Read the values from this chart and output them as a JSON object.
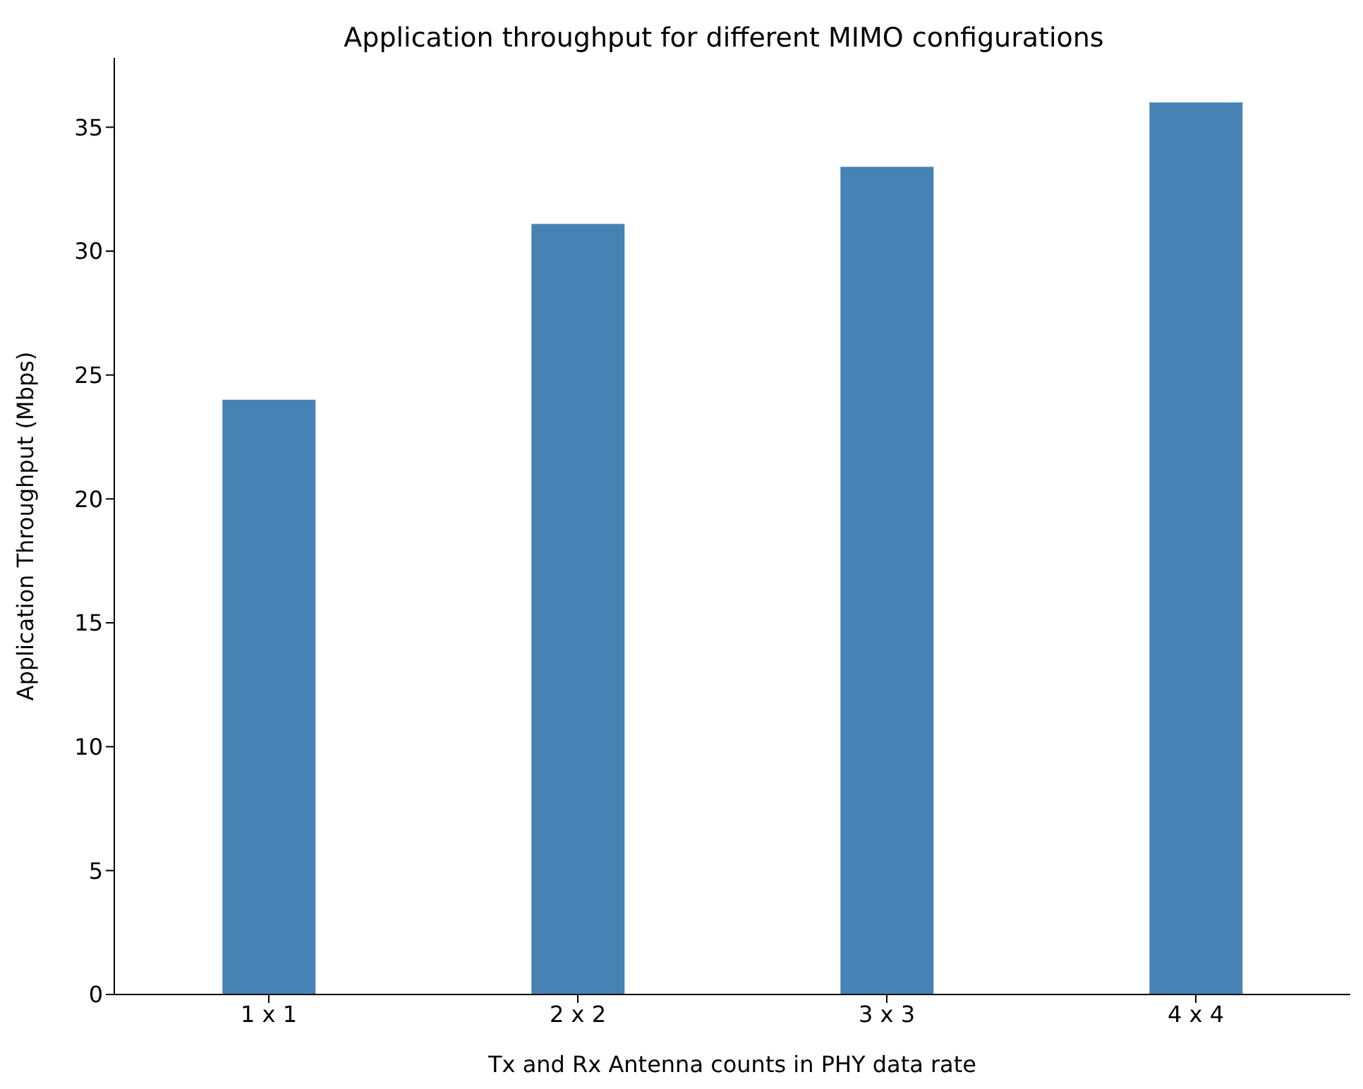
{
  "chart_data": {
    "type": "bar",
    "title": "Application throughput for different MIMO configurations",
    "xlabel": "Tx and Rx Antenna counts in PHY data rate",
    "ylabel": "Application Throughput (Mbps)",
    "categories": [
      "1 x 1",
      "2 x 2",
      "3 x 3",
      "4 x 4"
    ],
    "values": [
      24.0,
      31.1,
      33.4,
      36.0
    ],
    "color": "#4682b4",
    "ylim": [
      0,
      37.8
    ],
    "yticks": [
      0,
      5,
      10,
      15,
      20,
      25,
      30,
      35
    ],
    "grid": false,
    "legend": false
  }
}
